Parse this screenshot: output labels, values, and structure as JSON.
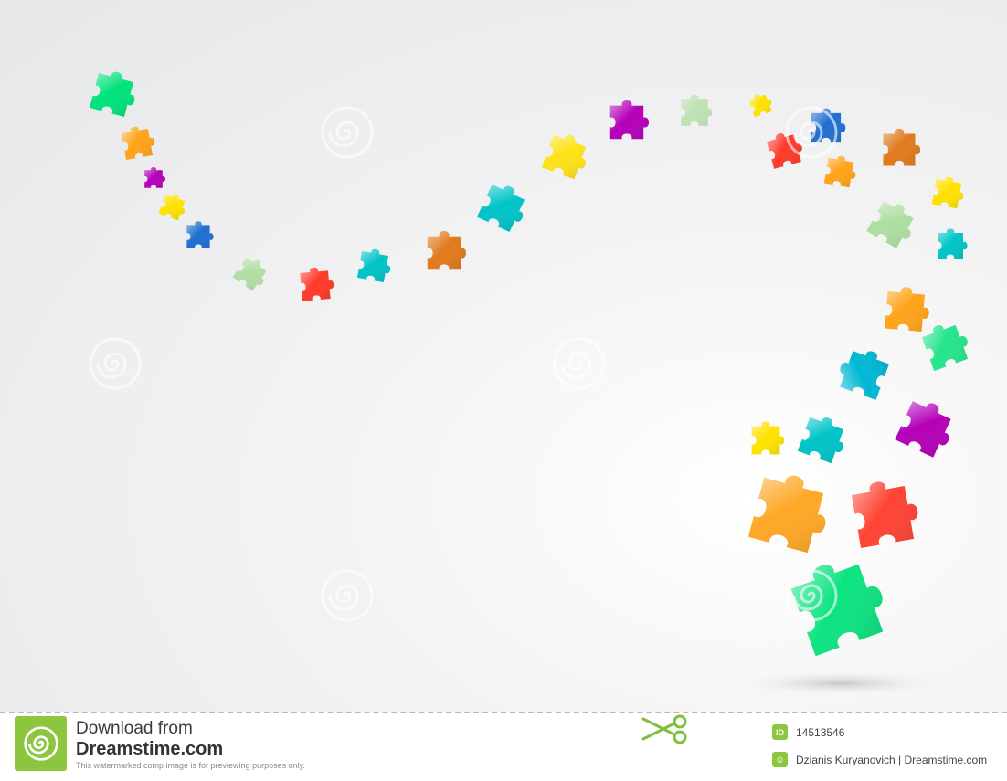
{
  "colors": {
    "brand_green": "#8cc63f",
    "piece_palette": [
      "#00e27a",
      "#ffa31a",
      "#b400b8",
      "#ffe100",
      "#1f6fd0",
      "#9ed98c",
      "#ff3a2a",
      "#00c4c8",
      "#e07a1c",
      "#00b8d4"
    ]
  },
  "footer": {
    "download_line": "Download from",
    "site_name": "Dreamstime.com",
    "disclaimer": "This watermarked comp image is for previewing purposes only.",
    "id_badge": "ID",
    "image_id": "14513546",
    "copyright_symbol": "©",
    "author_credit": "Dzianis Kuryanovich | Dreamstime.com"
  },
  "icons": {
    "logo": "dreamstime-spiral-logo",
    "scissors": "scissors-icon"
  }
}
